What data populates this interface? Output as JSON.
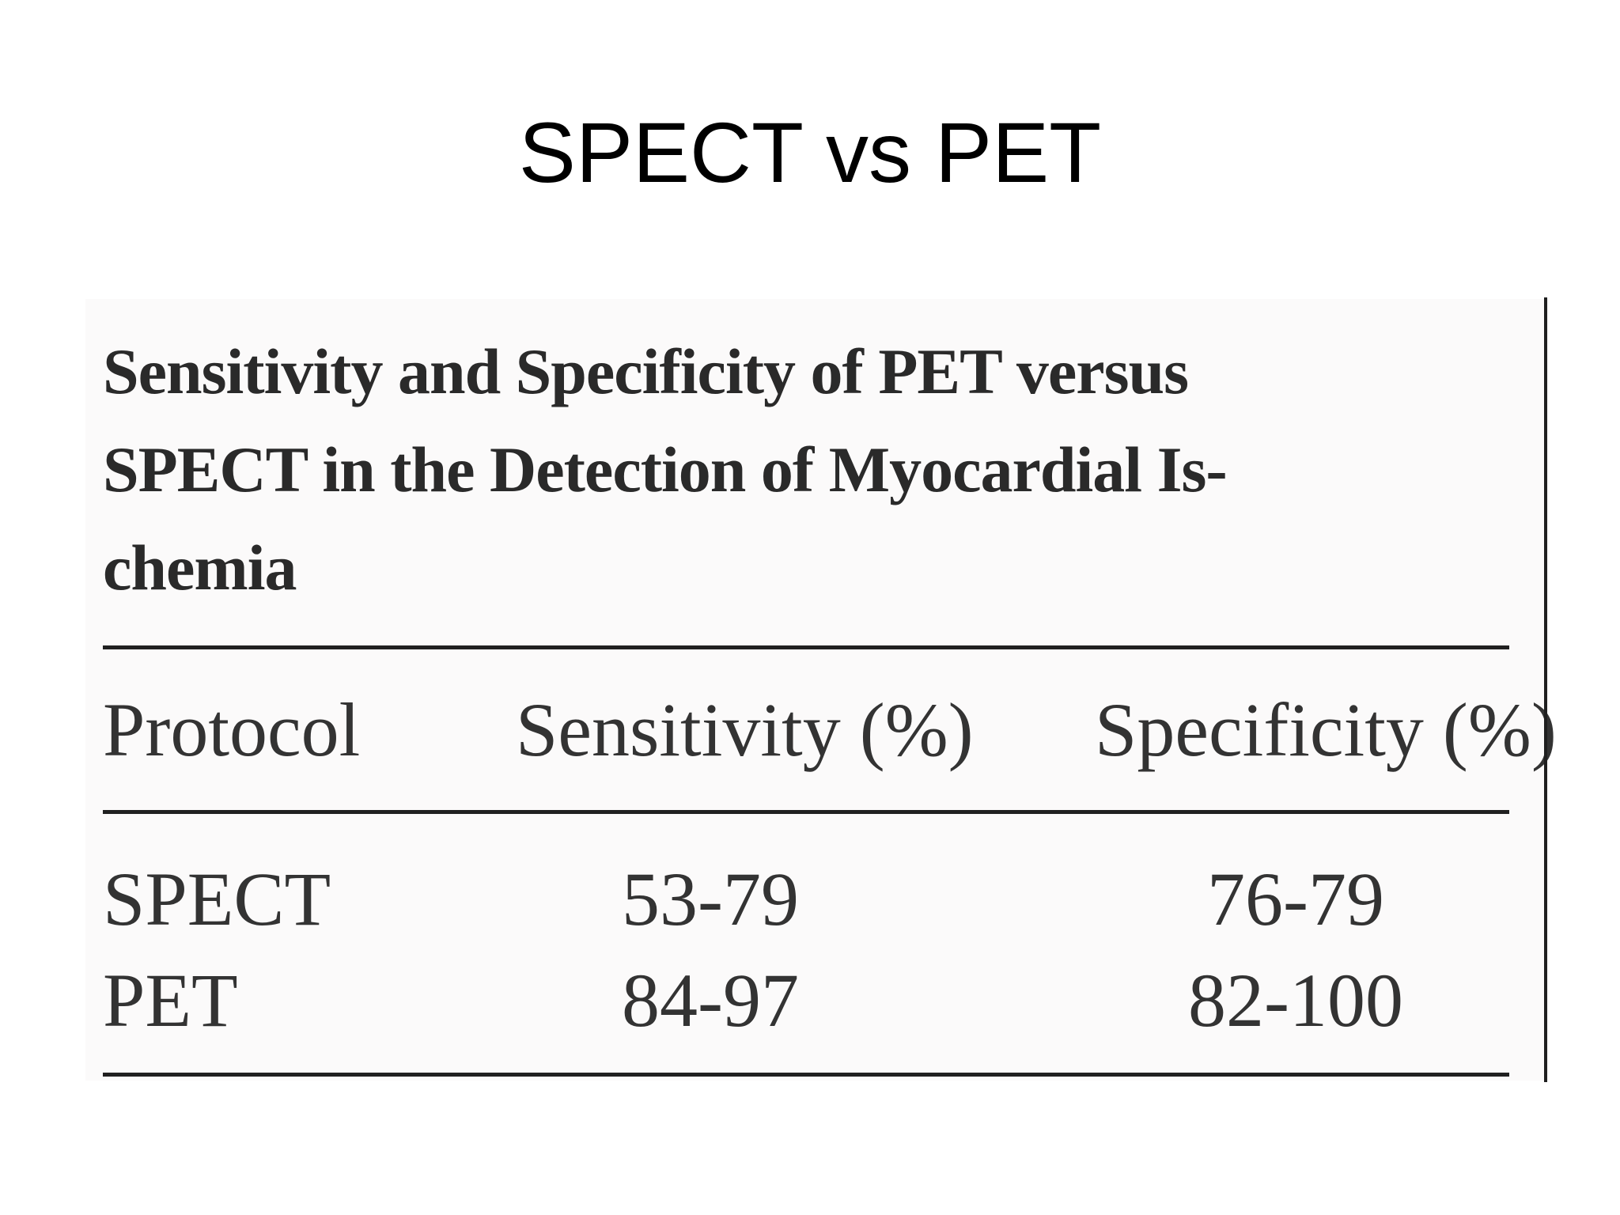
{
  "slide": {
    "title": "SPECT vs PET"
  },
  "table": {
    "caption": "Sensitivity and Specificity of PET versus SPECT in the Detection of Myocardial Is- chemia",
    "caption_lines": [
      "Sensitivity and Specificity of PET versus",
      "SPECT in the Detection of Myocardial Is-",
      "chemia"
    ],
    "columns": [
      "Protocol",
      "Sensitivity (%)",
      "Specificity (%)"
    ],
    "rows": [
      [
        "SPECT",
        "53-79",
        "76-79"
      ],
      [
        "PET",
        "84-97",
        "82-100"
      ]
    ]
  }
}
